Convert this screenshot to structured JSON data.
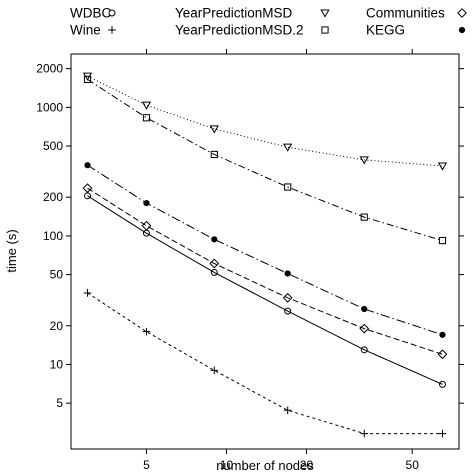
{
  "chart_data": {
    "type": "line",
    "xlabel": "number of nodes",
    "ylabel": "time (s)",
    "x_scale": "log",
    "y_scale": "log",
    "xlim": [
      2.6,
      75
    ],
    "ylim": [
      2.2,
      2600
    ],
    "x_ticks": [
      5,
      10,
      20,
      50
    ],
    "y_ticks": [
      5,
      10,
      20,
      50,
      100,
      200,
      500,
      1000,
      2000
    ],
    "grid": false,
    "legend_position": "top",
    "series": [
      {
        "name": "WDBC",
        "marker": "circle",
        "line": "solid",
        "color": "#000000",
        "x": [
          3,
          5,
          9,
          17,
          33,
          65
        ],
        "y": [
          205,
          105,
          52,
          26,
          13,
          7
        ]
      },
      {
        "name": "Wine",
        "marker": "plus",
        "line": "dashed-short",
        "color": "#000000",
        "x": [
          3,
          5,
          9,
          17,
          33,
          65
        ],
        "y": [
          36,
          18,
          9,
          4.4,
          2.9,
          2.9
        ]
      },
      {
        "name": "YearPredictionMSD",
        "marker": "triangle-down",
        "line": "dotted",
        "color": "#000000",
        "x": [
          3,
          5,
          9,
          17,
          33,
          65
        ],
        "y": [
          1750,
          1040,
          680,
          490,
          390,
          350
        ]
      },
      {
        "name": "YearPredictionMSD.2",
        "marker": "square",
        "line": "dashdot",
        "color": "#000000",
        "x": [
          3,
          5,
          9,
          17,
          33,
          65
        ],
        "y": [
          1650,
          830,
          430,
          240,
          140,
          92
        ]
      },
      {
        "name": "Communities",
        "marker": "diamond",
        "line": "dashed",
        "color": "#000000",
        "x": [
          3,
          5,
          9,
          17,
          33,
          65
        ],
        "y": [
          235,
          120,
          61,
          33,
          19,
          12
        ]
      },
      {
        "name": "KEGG",
        "marker": "filled-circle",
        "line": "dashdot-long",
        "color": "#000000",
        "x": [
          3,
          5,
          9,
          17,
          33,
          65
        ],
        "y": [
          355,
          180,
          94,
          51,
          27,
          17
        ]
      }
    ]
  }
}
